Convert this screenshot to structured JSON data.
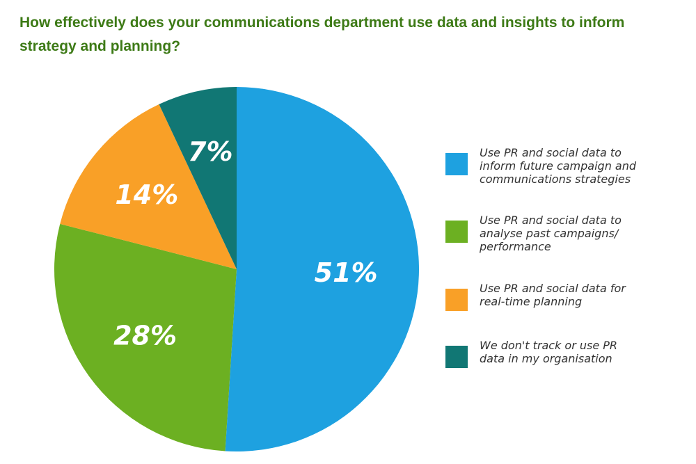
{
  "title": "How effectively does your communications department use data and insights to inform strategy and planning?",
  "chart_data": {
    "type": "pie",
    "title": "How effectively does your communications department use data and insights to inform strategy and planning?",
    "slices": [
      {
        "label": "Use PR and social data to inform future campaign and communications strategies",
        "value": 51,
        "display": "51%",
        "color": "#1ea1e0"
      },
      {
        "label": "Use PR and social data to analyse past campaigns/ performance",
        "value": 28,
        "display": "28%",
        "color": "#6cb022"
      },
      {
        "label": "Use PR and social data for real-time planning",
        "value": 14,
        "display": "14%",
        "color": "#f9a027"
      },
      {
        "label": "We don't track or use PR data in my organisation",
        "value": 7,
        "display": "7%",
        "color": "#117774"
      }
    ],
    "start": "12 o'clock",
    "direction": "clockwise",
    "legend_position": "right"
  },
  "legend": [
    {
      "lines": [
        "Use PR and social data to",
        "inform future campaign and",
        "communications strategies"
      ],
      "color": "#1ea1e0"
    },
    {
      "lines": [
        "Use PR and social data to",
        "analyse past campaigns/",
        "performance"
      ],
      "color": "#6cb022"
    },
    {
      "lines": [
        "Use PR and social data for",
        "real-time planning"
      ],
      "color": "#f9a027"
    },
    {
      "lines": [
        "We don't track or use PR",
        "data in my organisation"
      ],
      "color": "#117774"
    }
  ]
}
